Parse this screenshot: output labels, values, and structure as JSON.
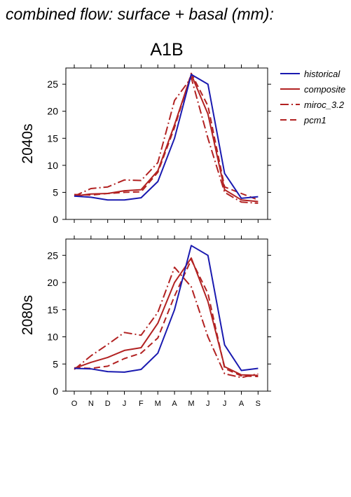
{
  "figure": {
    "title": "combined flow: surface + basal (mm):",
    "scenario": "A1B"
  },
  "legend": [
    {
      "name": "historical",
      "color": "#1a1ab0",
      "dash": "solid"
    },
    {
      "name": "composite",
      "color": "#b22222",
      "dash": "solid"
    },
    {
      "name": "miroc_3.2",
      "color": "#b22222",
      "dash": "dashdot"
    },
    {
      "name": "pcm1",
      "color": "#b22222",
      "dash": "dashed"
    }
  ],
  "chart_data": [
    {
      "type": "line",
      "row_label": "2040s",
      "categories": [
        "O",
        "N",
        "D",
        "J",
        "F",
        "M",
        "A",
        "M",
        "J",
        "J",
        "A",
        "S"
      ],
      "ylim": [
        0,
        28
      ],
      "yticks": [
        0,
        5,
        10,
        15,
        20,
        25
      ],
      "series": [
        {
          "name": "historical",
          "values": [
            4.3,
            4.1,
            3.6,
            3.6,
            4.0,
            7.0,
            15.0,
            26.8,
            25.0,
            8.5,
            3.9,
            4.2
          ]
        },
        {
          "name": "composite",
          "values": [
            4.3,
            4.7,
            4.8,
            5.3,
            5.5,
            9.0,
            17.5,
            26.8,
            19.5,
            5.5,
            3.6,
            3.3
          ]
        },
        {
          "name": "miroc_3.2",
          "values": [
            4.3,
            5.7,
            6.0,
            7.3,
            7.2,
            10.5,
            22.0,
            26.2,
            15.0,
            5.0,
            3.2,
            3.0
          ]
        },
        {
          "name": "pcm1",
          "values": [
            4.6,
            4.5,
            4.8,
            5.0,
            5.1,
            8.7,
            17.0,
            27.0,
            21.0,
            6.0,
            4.8,
            3.6
          ]
        }
      ]
    },
    {
      "type": "line",
      "row_label": "2080s",
      "categories": [
        "O",
        "N",
        "D",
        "J",
        "F",
        "M",
        "A",
        "M",
        "J",
        "J",
        "A",
        "S"
      ],
      "ylim": [
        0,
        28
      ],
      "yticks": [
        0,
        5,
        10,
        15,
        20,
        25
      ],
      "series": [
        {
          "name": "historical",
          "values": [
            4.2,
            4.1,
            3.6,
            3.5,
            4.0,
            7.0,
            15.0,
            26.8,
            25.0,
            8.5,
            3.8,
            4.2
          ]
        },
        {
          "name": "composite",
          "values": [
            4.2,
            5.3,
            6.2,
            7.5,
            8.0,
            12.5,
            20.0,
            24.5,
            16.5,
            4.5,
            3.0,
            2.9
          ]
        },
        {
          "name": "miroc_3.2",
          "values": [
            4.0,
            6.5,
            8.6,
            10.8,
            10.3,
            14.5,
            22.8,
            19.2,
            10.0,
            3.2,
            2.5,
            3.2
          ]
        },
        {
          "name": "pcm1",
          "values": [
            4.3,
            4.2,
            4.6,
            6.0,
            7.0,
            9.8,
            17.5,
            24.2,
            18.0,
            4.2,
            2.8,
            2.7
          ]
        }
      ]
    }
  ]
}
